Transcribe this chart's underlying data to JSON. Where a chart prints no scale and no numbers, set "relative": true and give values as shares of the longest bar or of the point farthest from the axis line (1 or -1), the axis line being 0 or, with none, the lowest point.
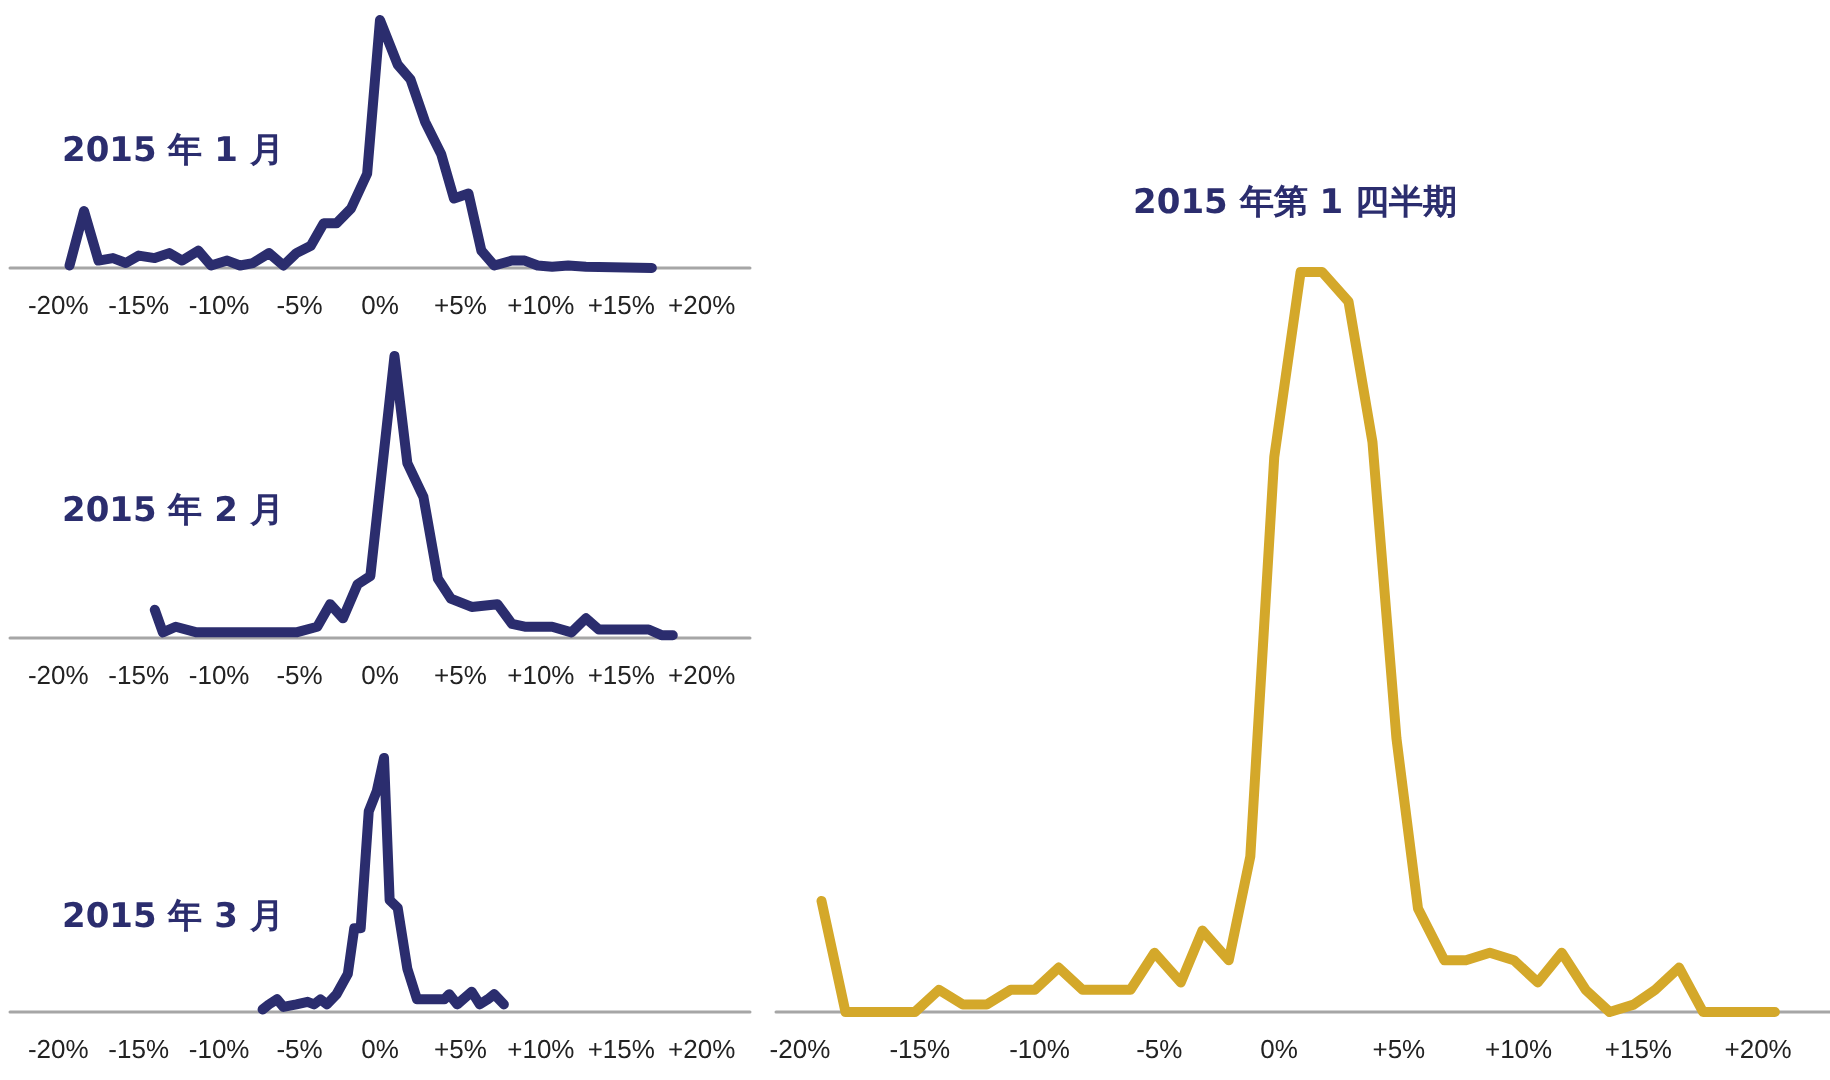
{
  "chart_data": [
    {
      "type": "line",
      "title": "2015 年 1 月",
      "relative": true,
      "marker": "none",
      "line_style": "solid",
      "xlim": [
        -23,
        23
      ],
      "xticks": [
        {
          "value": -20,
          "label": "-20%"
        },
        {
          "value": -15,
          "label": "-15%"
        },
        {
          "value": -10,
          "label": "-10%"
        },
        {
          "value": -5,
          "label": "-5%"
        },
        {
          "value": 0,
          "label": "0%"
        },
        {
          "value": 5,
          "label": "+5%"
        },
        {
          "value": 10,
          "label": "+10%"
        },
        {
          "value": 15,
          "label": "+15%"
        },
        {
          "value": 20,
          "label": "+20%"
        }
      ],
      "x": [
        -19.3,
        -18.4,
        -17.5,
        -16.6,
        -15.8,
        -15.0,
        -14.0,
        -13.1,
        -12.3,
        -11.3,
        -10.5,
        -9.5,
        -8.7,
        -7.9,
        -6.9,
        -6.0,
        -5.2,
        -4.3,
        -3.5,
        -2.7,
        -1.8,
        -0.8,
        0.0,
        1.1,
        1.9,
        2.8,
        3.8,
        4.6,
        5.5,
        6.3,
        7.1,
        8.2,
        9.0,
        9.8,
        10.7,
        11.7,
        12.8,
        16.9
      ],
      "series": [
        {
          "color": "#2b2d6e",
          "values": [
            0.01,
            0.23,
            0.03,
            0.04,
            0.02,
            0.05,
            0.04,
            0.06,
            0.03,
            0.07,
            0.01,
            0.03,
            0.01,
            0.02,
            0.06,
            0.01,
            0.06,
            0.09,
            0.18,
            0.18,
            0.24,
            0.38,
            1.0,
            0.82,
            0.76,
            0.59,
            0.46,
            0.28,
            0.3,
            0.07,
            0.01,
            0.03,
            0.03,
            0.01,
            0.005,
            0.01,
            0.005,
            0
          ]
        }
      ]
    },
    {
      "type": "line",
      "title": "2015 年 2 月",
      "relative": true,
      "marker": "none",
      "line_style": "solid",
      "xlim": [
        -23,
        23
      ],
      "xticks": [
        {
          "value": -20,
          "label": "-20%"
        },
        {
          "value": -15,
          "label": "-15%"
        },
        {
          "value": -10,
          "label": "-10%"
        },
        {
          "value": -5,
          "label": "-5%"
        },
        {
          "value": 0,
          "label": "0%"
        },
        {
          "value": 5,
          "label": "+5%"
        },
        {
          "value": 10,
          "label": "+10%"
        },
        {
          "value": 15,
          "label": "+15%"
        },
        {
          "value": 20,
          "label": "+20%"
        }
      ],
      "x": [
        -14.0,
        -13.5,
        -12.7,
        -11.4,
        -5.2,
        -3.9,
        -3.1,
        -2.3,
        -1.4,
        -0.6,
        0.9,
        1.7,
        2.7,
        3.6,
        4.4,
        5.7,
        7.3,
        8.2,
        9.0,
        10.7,
        11.9,
        12.8,
        13.6,
        16.7,
        17.5,
        18.2
      ],
      "series": [
        {
          "color": "#2b2d6e",
          "values": [
            0.1,
            0.02,
            0.04,
            0.02,
            0.02,
            0.04,
            0.12,
            0.07,
            0.19,
            0.22,
            1.0,
            0.62,
            0.5,
            0.21,
            0.14,
            0.11,
            0.12,
            0.05,
            0.04,
            0.04,
            0.02,
            0.07,
            0.03,
            0.03,
            0.01,
            0.01
          ]
        }
      ]
    },
    {
      "type": "line",
      "title": "2015 年 3 月",
      "relative": true,
      "marker": "none",
      "line_style": "solid",
      "xlim": [
        -23,
        23
      ],
      "xticks": [
        {
          "value": -20,
          "label": "-20%"
        },
        {
          "value": -15,
          "label": "-15%"
        },
        {
          "value": -10,
          "label": "-10%"
        },
        {
          "value": -5,
          "label": "-5%"
        },
        {
          "value": 0,
          "label": "0%"
        },
        {
          "value": 5,
          "label": "+5%"
        },
        {
          "value": 10,
          "label": "+10%"
        },
        {
          "value": 15,
          "label": "+15%"
        },
        {
          "value": 20,
          "label": "+20%"
        }
      ],
      "x": [
        -7.3,
        -6.9,
        -6.4,
        -6.0,
        -5.2,
        -4.5,
        -4.1,
        -3.7,
        -3.3,
        -2.7,
        -2.0,
        -1.6,
        -1.2,
        -0.7,
        -0.2,
        0.25,
        0.6,
        1.1,
        1.7,
        2.3,
        4.0,
        4.3,
        4.8,
        5.7,
        6.2,
        6.7,
        7.1,
        7.7
      ],
      "series": [
        {
          "color": "#2b2d6e",
          "values": [
            0.01,
            0.03,
            0.05,
            0.02,
            0.03,
            0.04,
            0.03,
            0.05,
            0.03,
            0.07,
            0.15,
            0.33,
            0.33,
            0.79,
            0.87,
            1.0,
            0.44,
            0.41,
            0.17,
            0.05,
            0.05,
            0.07,
            0.03,
            0.08,
            0.03,
            0.05,
            0.07,
            0.03
          ]
        }
      ]
    },
    {
      "type": "line",
      "title": "2015 年第 1 四半期",
      "relative": true,
      "marker": "none",
      "line_style": "solid",
      "xlim": [
        -21,
        23
      ],
      "xticks": [
        {
          "value": -20,
          "label": "-20%"
        },
        {
          "value": -15,
          "label": "-15%"
        },
        {
          "value": -10,
          "label": "-10%"
        },
        {
          "value": -5,
          "label": "-5%"
        },
        {
          "value": 0,
          "label": "0%"
        },
        {
          "value": 5,
          "label": "+5%"
        },
        {
          "value": 10,
          "label": "+10%"
        },
        {
          "value": 15,
          "label": "+15%"
        },
        {
          "value": 20,
          "label": "+20%"
        }
      ],
      "x": [
        -19.1,
        -18.1,
        -15.2,
        -14.2,
        -13.2,
        -12.2,
        -11.2,
        -10.2,
        -9.2,
        -8.2,
        -6.2,
        -5.2,
        -4.1,
        -3.2,
        -2.1,
        -1.2,
        -0.2,
        0.9,
        1.8,
        2.9,
        3.9,
        4.9,
        5.8,
        6.9,
        7.8,
        8.8,
        9.8,
        10.8,
        11.8,
        12.8,
        13.8,
        14.8,
        15.7,
        16.7,
        17.7,
        20.7
      ],
      "series": [
        {
          "color": "#d4a82a",
          "values": [
            0.15,
            0,
            0,
            0.03,
            0.01,
            0.01,
            0.03,
            0.03,
            0.06,
            0.03,
            0.03,
            0.08,
            0.04,
            0.11,
            0.07,
            0.21,
            0.75,
            1.0,
            1.0,
            0.96,
            0.77,
            0.37,
            0.14,
            0.07,
            0.07,
            0.08,
            0.07,
            0.04,
            0.08,
            0.03,
            0,
            0.01,
            0.03,
            0.06,
            0,
            0
          ]
        }
      ]
    }
  ]
}
